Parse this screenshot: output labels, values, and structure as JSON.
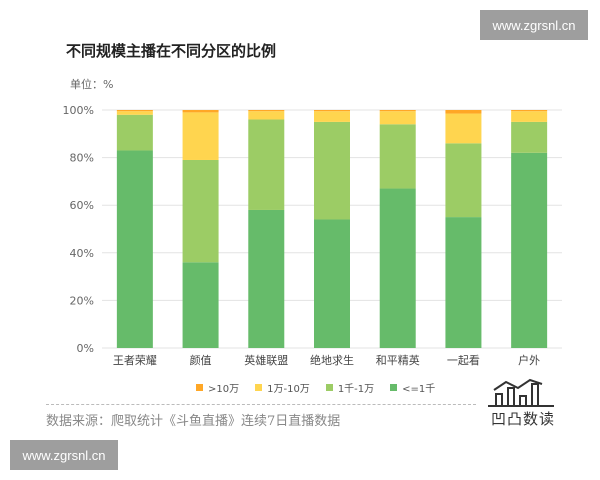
{
  "watermark": {
    "top": "www.zgrsnl.cn",
    "bottom": "www.zgrsnl.cn"
  },
  "header": {
    "title": "不同规模主播在不同分区的比例",
    "unit_label": "单位：%"
  },
  "footer": {
    "source": "数据来源：爬取统计《斗鱼直播》连续7日直播数据",
    "logo_text": "凹凸数读"
  },
  "chart_data": {
    "type": "bar",
    "stacked": true,
    "categories": [
      "王者荣耀",
      "颜值",
      "英雄联盟",
      "绝地求生",
      "和平精英",
      "一起看",
      "户外"
    ],
    "y_ticks": [
      "0%",
      "20%",
      "40%",
      "60%",
      "80%",
      "100%"
    ],
    "ylim": [
      0,
      100
    ],
    "legend_position": "bottom",
    "series": [
      {
        "name": "<=1千",
        "color": "#66bb6a",
        "values": [
          83,
          36,
          58,
          54,
          67,
          55,
          82
        ]
      },
      {
        "name": "1千-1万",
        "color": "#9ccc65",
        "values": [
          15,
          43,
          38,
          41,
          27,
          31,
          13
        ]
      },
      {
        "name": "1万-10万",
        "color": "#ffd54f",
        "values": [
          1.5,
          20,
          3.5,
          4.5,
          5.5,
          12.5,
          4.5
        ]
      },
      {
        "name": ">10万",
        "color": "#ffa726",
        "values": [
          0.5,
          1,
          0.5,
          0.5,
          0.5,
          1.5,
          0.5
        ]
      }
    ],
    "legend_order": [
      ">10万",
      "1万-10万",
      "1千-1万",
      "<=1千"
    ]
  }
}
